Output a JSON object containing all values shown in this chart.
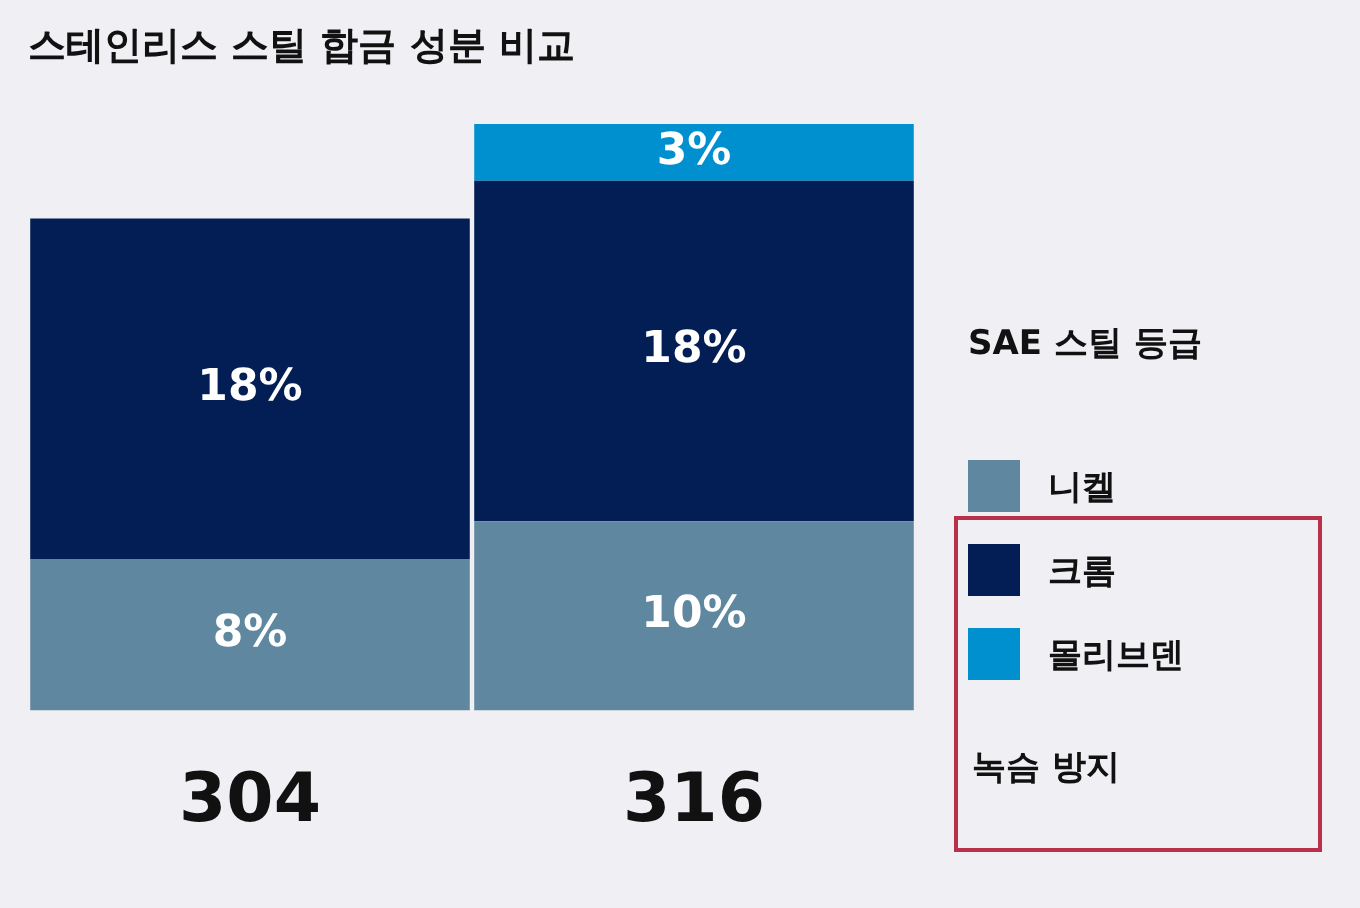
{
  "chart_data": {
    "type": "bar",
    "title": "스테인리스 스틸 합금 성분 비교",
    "categories": [
      "304",
      "316"
    ],
    "stacked": true,
    "legend": "right",
    "legend_title": "SAE 스틸 등급",
    "series": [
      {
        "name": "니켈",
        "color": "#5f87a0",
        "values": [
          8,
          10
        ],
        "value_labels": [
          "8%",
          "10%"
        ]
      },
      {
        "name": "크롬",
        "color": "#021e55",
        "values": [
          18,
          18
        ],
        "value_labels": [
          "18%",
          "18%"
        ]
      },
      {
        "name": "몰리브덴",
        "color": "#0090cf",
        "values": [
          null,
          3
        ],
        "value_labels": [
          null,
          "3%"
        ]
      }
    ],
    "annotations": [
      "녹슴 방지"
    ]
  }
}
